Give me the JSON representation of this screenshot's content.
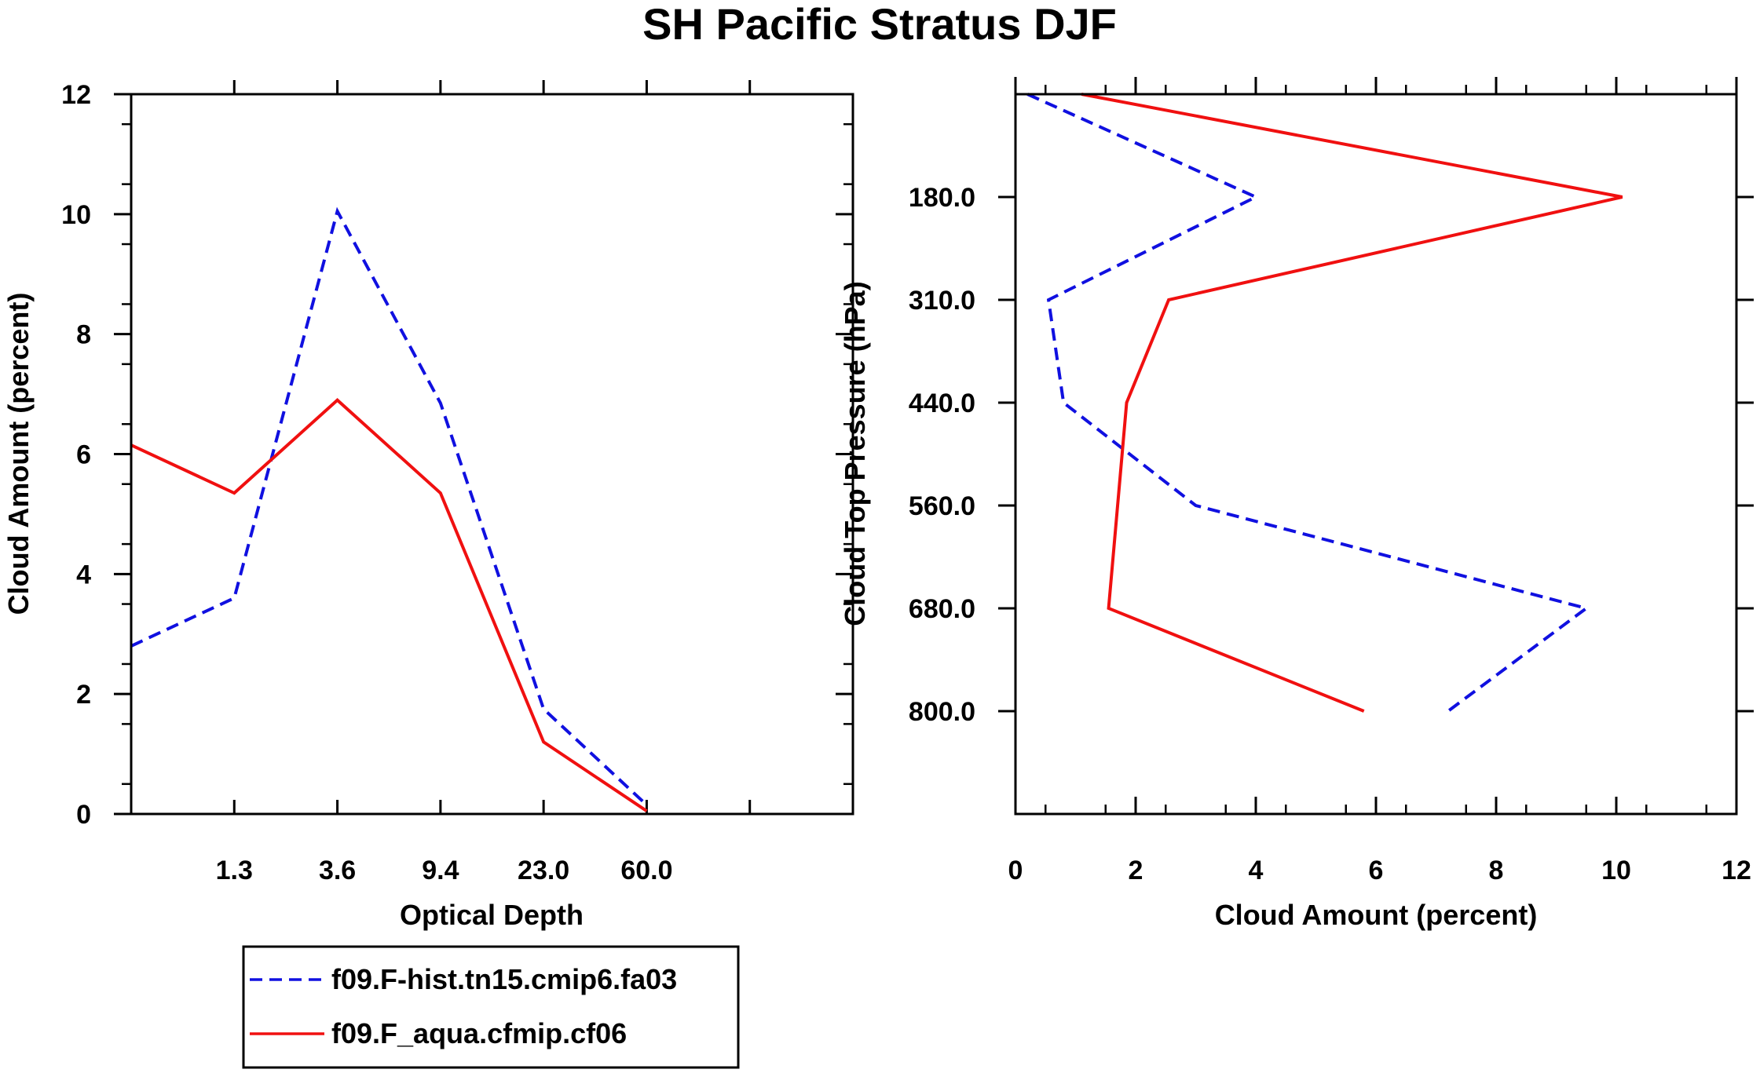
{
  "figure": {
    "title": "SH Pacific Stratus DJF",
    "colors": {
      "model": "#1010e0",
      "obs": "#f01010",
      "axis": "#000000"
    }
  },
  "legend": {
    "entries": [
      {
        "label": "f09.F-hist.tn15.cmip6.fa03",
        "style": "dashed",
        "color": "#1010e0"
      },
      {
        "label": "f09.F_aqua.cfmip.cf06",
        "style": "solid",
        "color": "#f01010"
      }
    ]
  },
  "chart_data": [
    {
      "type": "line",
      "xlabel": "Optical Depth",
      "ylabel": "Cloud Amount (percent)",
      "x_tick_labels": [
        "1.3",
        "3.6",
        "9.4",
        "23.0",
        "60.0"
      ],
      "y_ticks": [
        0,
        2,
        4,
        6,
        8,
        10,
        12
      ],
      "ylim": [
        0,
        12
      ],
      "x_bins": 7,
      "series": [
        {
          "name": "f09.F-hist.tn15.cmip6.fa03",
          "style": "dashed",
          "values": [
            2.8,
            3.6,
            10.05,
            6.85,
            1.75,
            0.15
          ]
        },
        {
          "name": "f09.F_aqua.cfmip.cf06",
          "style": "solid",
          "values": [
            6.15,
            5.35,
            6.9,
            5.35,
            1.2,
            0.05
          ]
        }
      ]
    },
    {
      "type": "line",
      "xlabel": "Cloud Amount (percent)",
      "ylabel": "Cloud Top Pressure (hPa)",
      "x_ticks": [
        0,
        2,
        4,
        6,
        8,
        10,
        12
      ],
      "xlim": [
        0,
        12
      ],
      "y_tick_labels": [
        "180.0",
        "310.0",
        "440.0",
        "560.0",
        "680.0",
        "800.0"
      ],
      "y_bins": 7,
      "series": [
        {
          "name": "f09.F-hist.tn15.cmip6.fa03",
          "style": "dashed",
          "values": [
            0.2,
            4.0,
            0.55,
            0.8,
            3.0,
            9.5,
            7.2
          ]
        },
        {
          "name": "f09.F_aqua.cfmip.cf06",
          "style": "solid",
          "values": [
            1.1,
            10.1,
            2.55,
            1.85,
            1.7,
            1.55,
            5.8
          ]
        }
      ]
    }
  ]
}
